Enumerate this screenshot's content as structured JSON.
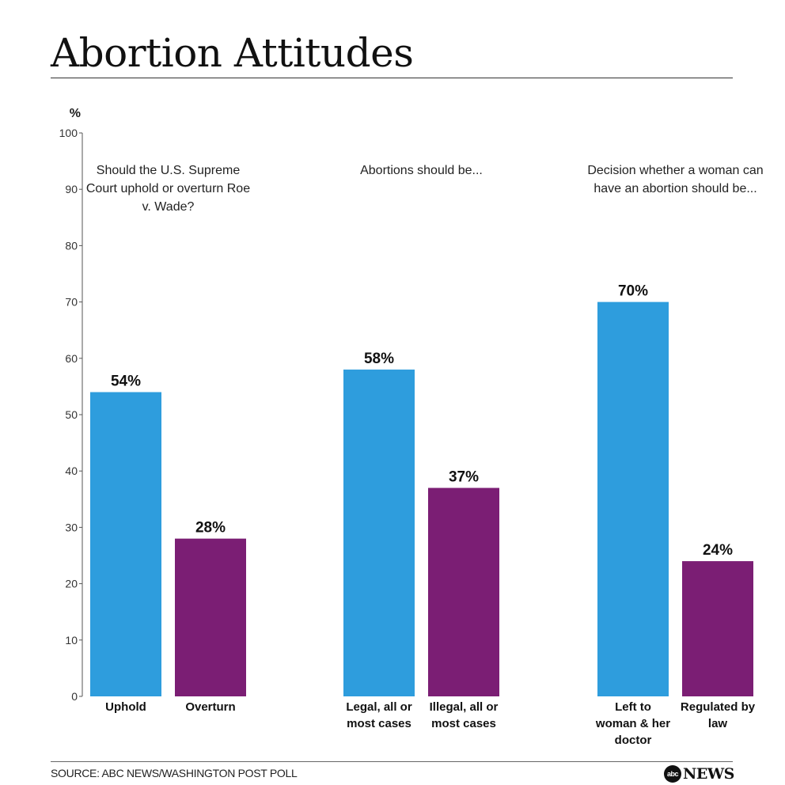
{
  "header": {
    "title": "Abortion Attitudes"
  },
  "footer": {
    "source": "SOURCE: ABC NEWS/WASHINGTON POST POLL",
    "logo_abc": "abc",
    "logo_news": "NEWS"
  },
  "colors": {
    "blue": "#2e9ddd",
    "purple": "#7b1e74"
  },
  "chart_data": {
    "type": "bar",
    "ylabel": "%",
    "ylim": [
      0,
      100
    ],
    "yticks": [
      0,
      10,
      20,
      30,
      40,
      50,
      60,
      70,
      80,
      90,
      100
    ],
    "groups": [
      {
        "question": [
          "Should the U.S. Supreme",
          "Court uphold or overturn Roe",
          "v. Wade?"
        ],
        "bars": [
          {
            "category": [
              "Uphold"
            ],
            "value": 54,
            "label": "54%",
            "color": "blue"
          },
          {
            "category": [
              "Overturn"
            ],
            "value": 28,
            "label": "28%",
            "color": "purple"
          }
        ]
      },
      {
        "question": [
          "Abortions should be..."
        ],
        "bars": [
          {
            "category": [
              "Legal, all or",
              "most cases"
            ],
            "value": 58,
            "label": "58%",
            "color": "blue"
          },
          {
            "category": [
              "Illegal, all or",
              "most cases"
            ],
            "value": 37,
            "label": "37%",
            "color": "purple"
          }
        ]
      },
      {
        "question": [
          "Decision whether a woman can",
          "have an abortion should be..."
        ],
        "bars": [
          {
            "category": [
              "Left to",
              "woman & her",
              "doctor"
            ],
            "value": 70,
            "label": "70%",
            "color": "blue"
          },
          {
            "category": [
              "Regulated by",
              "law"
            ],
            "value": 24,
            "label": "24%",
            "color": "purple"
          }
        ]
      }
    ]
  }
}
